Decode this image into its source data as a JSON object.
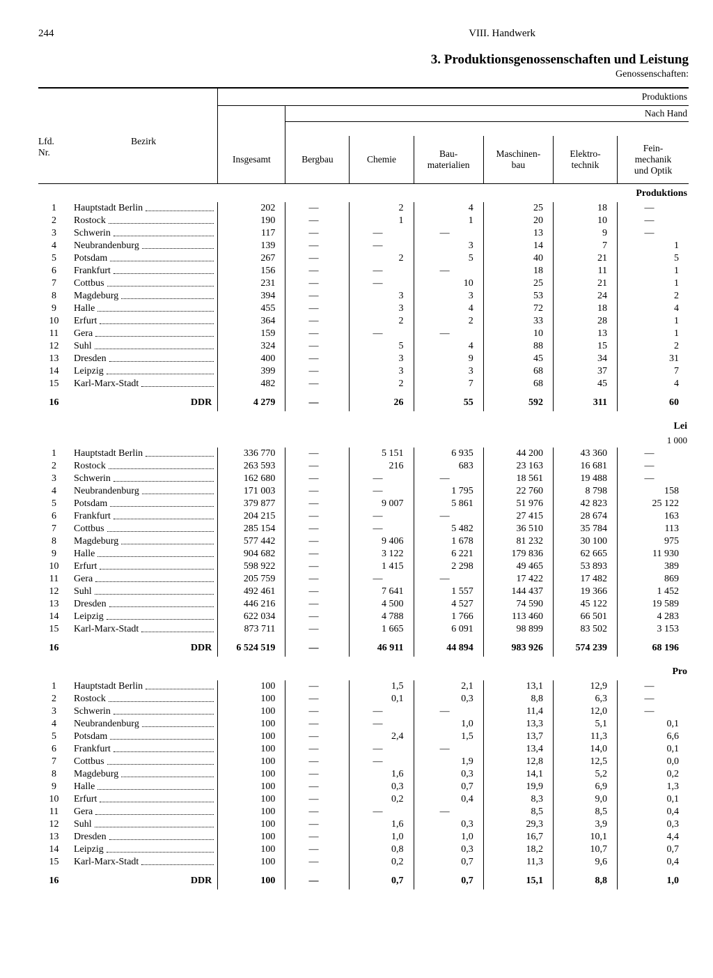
{
  "page_number": "244",
  "chapter": "VIII. Handwerk",
  "section_title": "3. Produktionsgenossenschaften und Leistung",
  "sub_title": "Genossenschaften:",
  "header_top_right": "Produktions",
  "header_second_right": "Nach Hand",
  "columns": {
    "lfd": "Lfd.\nNr.",
    "bezirk": "Bezirk",
    "insgesamt": "Insgesamt",
    "bergbau": "Bergbau",
    "chemie": "Chemie",
    "bau": "Bau-\nmaterialien",
    "maschinen": "Maschinen-\nbau",
    "elektro": "Elektro-\ntechnik",
    "fein": "Fein-\nmechanik\nund Optik"
  },
  "section_labels": {
    "s1": "Produktions",
    "s2a": "Lei",
    "s2b": "1 000",
    "s3": "Pro"
  },
  "bezirke": [
    "Hauptstadt Berlin",
    "Rostock",
    "Schwerin",
    "Neubrandenburg",
    "Potsdam",
    "Frankfurt",
    "Cottbus",
    "Magdeburg",
    "Halle",
    "Erfurt",
    "Gera",
    "Suhl",
    "Dresden",
    "Leipzig",
    "Karl-Marx-Stadt"
  ],
  "total_label": "DDR",
  "blocks": [
    {
      "rows": [
        [
          "202",
          "—",
          "2",
          "4",
          "25",
          "18",
          "—"
        ],
        [
          "190",
          "—",
          "1",
          "1",
          "20",
          "10",
          "—"
        ],
        [
          "117",
          "—",
          "—",
          "—",
          "13",
          "9",
          "—"
        ],
        [
          "139",
          "—",
          "—",
          "3",
          "14",
          "7",
          "1"
        ],
        [
          "267",
          "—",
          "2",
          "5",
          "40",
          "21",
          "5"
        ],
        [
          "156",
          "—",
          "—",
          "—",
          "18",
          "11",
          "1"
        ],
        [
          "231",
          "—",
          "—",
          "10",
          "25",
          "21",
          "1"
        ],
        [
          "394",
          "—",
          "3",
          "3",
          "53",
          "24",
          "2"
        ],
        [
          "455",
          "—",
          "3",
          "4",
          "72",
          "18",
          "4"
        ],
        [
          "364",
          "—",
          "2",
          "2",
          "33",
          "28",
          "1"
        ],
        [
          "159",
          "—",
          "—",
          "—",
          "10",
          "13",
          "1"
        ],
        [
          "324",
          "—",
          "5",
          "4",
          "88",
          "15",
          "2"
        ],
        [
          "400",
          "—",
          "3",
          "9",
          "45",
          "34",
          "31"
        ],
        [
          "399",
          "—",
          "3",
          "3",
          "68",
          "37",
          "7"
        ],
        [
          "482",
          "—",
          "2",
          "7",
          "68",
          "45",
          "4"
        ]
      ],
      "total": [
        "4 279",
        "—",
        "26",
        "55",
        "592",
        "311",
        "60"
      ]
    },
    {
      "rows": [
        [
          "336 770",
          "—",
          "5 151",
          "6 935",
          "44 200",
          "43 360",
          "—"
        ],
        [
          "263 593",
          "—",
          "216",
          "683",
          "23 163",
          "16 681",
          "—"
        ],
        [
          "162 680",
          "—",
          "—",
          "—",
          "18 561",
          "19 488",
          "—"
        ],
        [
          "171 003",
          "—",
          "—",
          "1 795",
          "22 760",
          "8 798",
          "158"
        ],
        [
          "379 877",
          "—",
          "9 007",
          "5 861",
          "51 976",
          "42 823",
          "25 122"
        ],
        [
          "204 215",
          "—",
          "—",
          "—",
          "27 415",
          "28 674",
          "163"
        ],
        [
          "285 154",
          "—",
          "—",
          "5 482",
          "36 510",
          "35 784",
          "113"
        ],
        [
          "577 442",
          "—",
          "9 406",
          "1 678",
          "81 232",
          "30 100",
          "975"
        ],
        [
          "904 682",
          "—",
          "3 122",
          "6 221",
          "179 836",
          "62 665",
          "11 930"
        ],
        [
          "598 922",
          "—",
          "1 415",
          "2 298",
          "49 465",
          "53 893",
          "389"
        ],
        [
          "205 759",
          "—",
          "—",
          "—",
          "17 422",
          "17 482",
          "869"
        ],
        [
          "492 461",
          "—",
          "7 641",
          "1 557",
          "144 437",
          "19 366",
          "1 452"
        ],
        [
          "446 216",
          "—",
          "4 500",
          "4 527",
          "74 590",
          "45 122",
          "19 589"
        ],
        [
          "622 034",
          "—",
          "4 788",
          "1 766",
          "113 460",
          "66 501",
          "4 283"
        ],
        [
          "873 711",
          "—",
          "1 665",
          "6 091",
          "98 899",
          "83 502",
          "3 153"
        ]
      ],
      "total": [
        "6 524 519",
        "—",
        "46 911",
        "44 894",
        "983 926",
        "574 239",
        "68 196"
      ]
    },
    {
      "rows": [
        [
          "100",
          "—",
          "1,5",
          "2,1",
          "13,1",
          "12,9",
          "—"
        ],
        [
          "100",
          "—",
          "0,1",
          "0,3",
          "8,8",
          "6,3",
          "—"
        ],
        [
          "100",
          "—",
          "—",
          "—",
          "11,4",
          "12,0",
          "—"
        ],
        [
          "100",
          "—",
          "—",
          "1,0",
          "13,3",
          "5,1",
          "0,1"
        ],
        [
          "100",
          "—",
          "2,4",
          "1,5",
          "13,7",
          "11,3",
          "6,6"
        ],
        [
          "100",
          "—",
          "—",
          "—",
          "13,4",
          "14,0",
          "0,1"
        ],
        [
          "100",
          "—",
          "—",
          "1,9",
          "12,8",
          "12,5",
          "0,0"
        ],
        [
          "100",
          "—",
          "1,6",
          "0,3",
          "14,1",
          "5,2",
          "0,2"
        ],
        [
          "100",
          "—",
          "0,3",
          "0,7",
          "19,9",
          "6,9",
          "1,3"
        ],
        [
          "100",
          "—",
          "0,2",
          "0,4",
          "8,3",
          "9,0",
          "0,1"
        ],
        [
          "100",
          "—",
          "—",
          "—",
          "8,5",
          "8,5",
          "0,4"
        ],
        [
          "100",
          "—",
          "1,6",
          "0,3",
          "29,3",
          "3,9",
          "0,3"
        ],
        [
          "100",
          "—",
          "1,0",
          "1,0",
          "16,7",
          "10,1",
          "4,4"
        ],
        [
          "100",
          "—",
          "0,8",
          "0,3",
          "18,2",
          "10,7",
          "0,7"
        ],
        [
          "100",
          "—",
          "0,2",
          "0,7",
          "11,3",
          "9,6",
          "0,4"
        ]
      ],
      "total": [
        "100",
        "—",
        "0,7",
        "0,7",
        "15,1",
        "8,8",
        "1,0"
      ]
    }
  ]
}
